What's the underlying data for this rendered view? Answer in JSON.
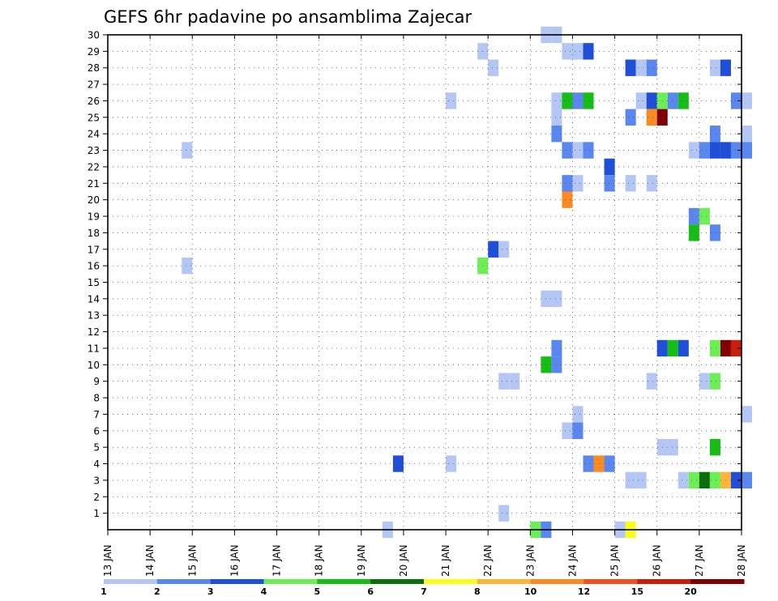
{
  "chart_data": {
    "type": "heatmap",
    "title": "GEFS 6hr padavine po ansamblima Zajecar",
    "xlabel": "",
    "ylabel": "",
    "x_tick_labels": [
      "13 JAN",
      "14 JAN",
      "15 JAN",
      "16 JAN",
      "17 JAN",
      "18 JAN",
      "19 JAN",
      "20 JAN",
      "21 JAN",
      "22 JAN",
      "23 JAN",
      "24 JAN",
      "25 JAN",
      "26 JAN",
      "27 JAN",
      "28 JAN"
    ],
    "y_tick_labels": [
      "1",
      "2",
      "3",
      "4",
      "5",
      "6",
      "7",
      "8",
      "9",
      "10",
      "11",
      "12",
      "13",
      "14",
      "15",
      "16",
      "17",
      "18",
      "19",
      "20",
      "21",
      "22",
      "23",
      "24",
      "25",
      "26",
      "27",
      "28",
      "29",
      "30"
    ],
    "xlim_days": [
      13,
      28
    ],
    "ylim_members": [
      0,
      30
    ],
    "time_step_hours": 6,
    "grid": true,
    "colorbar": {
      "levels": [
        "1",
        "2",
        "3",
        "4",
        "5",
        "6",
        "7",
        "8",
        "10",
        "12",
        "15",
        "20"
      ],
      "colors": [
        "#b3c6f4",
        "#5a86ef",
        "#1f4fd8",
        "#6cef54",
        "#15bd15",
        "#0a6e0a",
        "#fcfc1a",
        "#fcb43a",
        "#fc8a20",
        "#f0501c",
        "#c81e0a",
        "#800000"
      ]
    },
    "cells": [
      {
        "day": 23.25,
        "member": 30,
        "level": 1
      },
      {
        "day": 23.5,
        "member": 30,
        "level": 1
      },
      {
        "day": 21.75,
        "member": 29,
        "level": 1
      },
      {
        "day": 23.75,
        "member": 29,
        "level": 1
      },
      {
        "day": 24.0,
        "member": 29,
        "level": 1
      },
      {
        "day": 24.25,
        "member": 29,
        "level": 3
      },
      {
        "day": 22.0,
        "member": 28,
        "level": 1
      },
      {
        "day": 25.25,
        "member": 28,
        "level": 3
      },
      {
        "day": 25.5,
        "member": 28,
        "level": 1
      },
      {
        "day": 25.75,
        "member": 28,
        "level": 2
      },
      {
        "day": 27.25,
        "member": 28,
        "level": 1
      },
      {
        "day": 27.5,
        "member": 28,
        "level": 3
      },
      {
        "day": 21.0,
        "member": 26,
        "level": 1
      },
      {
        "day": 23.5,
        "member": 26,
        "level": 1
      },
      {
        "day": 23.75,
        "member": 26,
        "level": 5
      },
      {
        "day": 24.0,
        "member": 26,
        "level": 2
      },
      {
        "day": 24.25,
        "member": 26,
        "level": 5
      },
      {
        "day": 25.5,
        "member": 26,
        "level": 1
      },
      {
        "day": 25.75,
        "member": 26,
        "level": 3
      },
      {
        "day": 26.0,
        "member": 26,
        "level": 4
      },
      {
        "day": 26.25,
        "member": 26,
        "level": 2
      },
      {
        "day": 26.5,
        "member": 26,
        "level": 5
      },
      {
        "day": 27.75,
        "member": 26,
        "level": 2
      },
      {
        "day": 28.0,
        "member": 26,
        "level": 1
      },
      {
        "day": 23.5,
        "member": 25,
        "level": 1
      },
      {
        "day": 25.25,
        "member": 25,
        "level": 2
      },
      {
        "day": 25.75,
        "member": 25,
        "level": 9
      },
      {
        "day": 26.0,
        "member": 25,
        "level": 12
      },
      {
        "day": 23.5,
        "member": 24,
        "level": 2
      },
      {
        "day": 27.25,
        "member": 24,
        "level": 2
      },
      {
        "day": 28.0,
        "member": 24,
        "level": 1
      },
      {
        "day": 14.75,
        "member": 23,
        "level": 1
      },
      {
        "day": 23.75,
        "member": 23,
        "level": 2
      },
      {
        "day": 24.0,
        "member": 23,
        "level": 1
      },
      {
        "day": 24.25,
        "member": 23,
        "level": 2
      },
      {
        "day": 26.75,
        "member": 23,
        "level": 1
      },
      {
        "day": 27.0,
        "member": 23,
        "level": 2
      },
      {
        "day": 27.25,
        "member": 23,
        "level": 3
      },
      {
        "day": 27.5,
        "member": 23,
        "level": 3
      },
      {
        "day": 27.75,
        "member": 23,
        "level": 2
      },
      {
        "day": 28.0,
        "member": 23,
        "level": 2
      },
      {
        "day": 24.75,
        "member": 22,
        "level": 3
      },
      {
        "day": 24.75,
        "member": 21,
        "level": 2
      },
      {
        "day": 23.75,
        "member": 21,
        "level": 2
      },
      {
        "day": 24.0,
        "member": 21,
        "level": 1
      },
      {
        "day": 25.25,
        "member": 21,
        "level": 1
      },
      {
        "day": 25.75,
        "member": 21,
        "level": 1
      },
      {
        "day": 23.75,
        "member": 20,
        "level": 9
      },
      {
        "day": 26.75,
        "member": 19,
        "level": 2
      },
      {
        "day": 27.0,
        "member": 19,
        "level": 4
      },
      {
        "day": 26.75,
        "member": 18,
        "level": 5
      },
      {
        "day": 27.25,
        "member": 18,
        "level": 2
      },
      {
        "day": 22.0,
        "member": 17,
        "level": 3
      },
      {
        "day": 22.25,
        "member": 17,
        "level": 1
      },
      {
        "day": 14.75,
        "member": 16,
        "level": 1
      },
      {
        "day": 21.75,
        "member": 16,
        "level": 4
      },
      {
        "day": 23.25,
        "member": 14,
        "level": 1
      },
      {
        "day": 23.5,
        "member": 14,
        "level": 1
      },
      {
        "day": 23.5,
        "member": 11,
        "level": 2
      },
      {
        "day": 26.0,
        "member": 11,
        "level": 3
      },
      {
        "day": 26.25,
        "member": 11,
        "level": 5
      },
      {
        "day": 26.5,
        "member": 11,
        "level": 3
      },
      {
        "day": 27.25,
        "member": 11,
        "level": 4
      },
      {
        "day": 27.5,
        "member": 11,
        "level": 12
      },
      {
        "day": 27.75,
        "member": 11,
        "level": 11
      },
      {
        "day": 23.25,
        "member": 10,
        "level": 5
      },
      {
        "day": 23.5,
        "member": 10,
        "level": 2
      },
      {
        "day": 22.25,
        "member": 9,
        "level": 1
      },
      {
        "day": 22.5,
        "member": 9,
        "level": 1
      },
      {
        "day": 25.75,
        "member": 9,
        "level": 1
      },
      {
        "day": 27.0,
        "member": 9,
        "level": 1
      },
      {
        "day": 27.25,
        "member": 9,
        "level": 4
      },
      {
        "day": 24.0,
        "member": 7,
        "level": 1
      },
      {
        "day": 28.0,
        "member": 7,
        "level": 1
      },
      {
        "day": 23.75,
        "member": 6,
        "level": 1
      },
      {
        "day": 24.0,
        "member": 6,
        "level": 2
      },
      {
        "day": 26.0,
        "member": 5,
        "level": 1
      },
      {
        "day": 26.25,
        "member": 5,
        "level": 1
      },
      {
        "day": 27.25,
        "member": 5,
        "level": 5
      },
      {
        "day": 19.75,
        "member": 4,
        "level": 3
      },
      {
        "day": 21.0,
        "member": 4,
        "level": 1
      },
      {
        "day": 24.25,
        "member": 4,
        "level": 2
      },
      {
        "day": 24.5,
        "member": 4,
        "level": 9
      },
      {
        "day": 24.75,
        "member": 4,
        "level": 2
      },
      {
        "day": 25.25,
        "member": 3,
        "level": 1
      },
      {
        "day": 25.5,
        "member": 3,
        "level": 1
      },
      {
        "day": 26.5,
        "member": 3,
        "level": 1
      },
      {
        "day": 26.75,
        "member": 3,
        "level": 4
      },
      {
        "day": 27.0,
        "member": 3,
        "level": 6
      },
      {
        "day": 27.25,
        "member": 3,
        "level": 4
      },
      {
        "day": 27.5,
        "member": 3,
        "level": 8
      },
      {
        "day": 27.75,
        "member": 3,
        "level": 3
      },
      {
        "day": 28.0,
        "member": 3,
        "level": 2
      },
      {
        "day": 22.25,
        "member": 1,
        "level": 1
      },
      {
        "day": 19.5,
        "member": 0,
        "level": 1
      },
      {
        "day": 23.0,
        "member": 0,
        "level": 4
      },
      {
        "day": 23.25,
        "member": 0,
        "level": 2
      },
      {
        "day": 25.0,
        "member": 0,
        "level": 1
      },
      {
        "day": 25.25,
        "member": 0,
        "level": 7
      }
    ]
  }
}
